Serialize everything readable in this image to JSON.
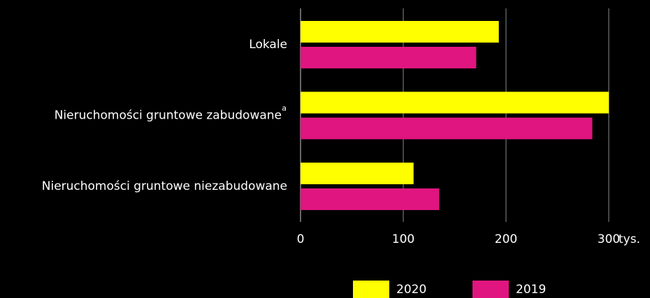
{
  "chart_data": {
    "type": "bar",
    "orientation": "horizontal",
    "categories": [
      "Lokale",
      "Nieruchomości gruntowe zabudowane",
      "Nieruchomości gruntowe niezabudowane"
    ],
    "annotation": "a",
    "x_label": "tys.",
    "series": [
      {
        "name": "2020",
        "color": "#ffff00",
        "values": [
          193,
          300,
          110
        ]
      },
      {
        "name": "2019",
        "color": "#e0157f",
        "values": [
          171,
          284,
          135
        ]
      }
    ],
    "xlim": [
      0,
      300
    ],
    "xticks": [
      0,
      100,
      200,
      300
    ],
    "grid": true
  }
}
